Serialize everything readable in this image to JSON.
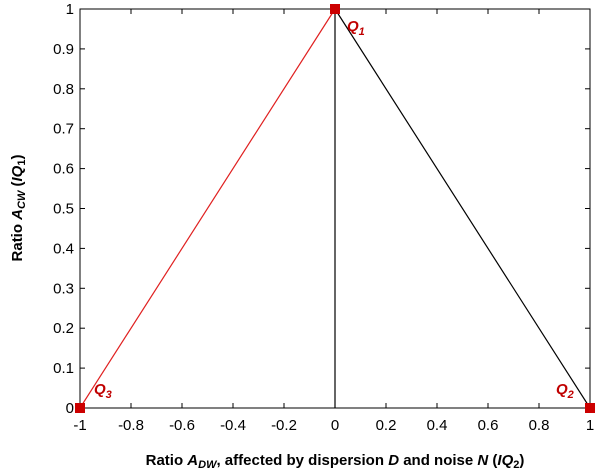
{
  "chart_data": {
    "type": "line",
    "title": "",
    "xlabel": "Ratio ADW, affected by dispersion D and noise N (IQ2)",
    "xlabel_parts": {
      "prefix": "Ratio ",
      "symbol": "A",
      "symbol_sub": "DW",
      "middle1": ", affected by dispersion ",
      "d": "D",
      "middle2": " and noise ",
      "n": "N",
      "open": " (",
      "iq": "IQ",
      "iq_sub": "2",
      "close": ")"
    },
    "ylabel": "Ratio ACW (IQ1)",
    "ylabel_parts": {
      "prefix": "Ratio ",
      "symbol": "A",
      "symbol_sub": "CW",
      "open": " (",
      "iq": "IQ",
      "iq_sub": "1",
      "close": ")"
    },
    "xlim": [
      -1,
      1
    ],
    "ylim": [
      0,
      1
    ],
    "xticks": [
      -1,
      -0.8,
      -0.6,
      -0.4,
      -0.2,
      0,
      0.2,
      0.4,
      0.6,
      0.8,
      1
    ],
    "xtick_labels": [
      "-1",
      "-0.8",
      "-0.6",
      "-0.4",
      "-0.2",
      "0",
      "0.2",
      "0.4",
      "0.6",
      "0.8",
      "1"
    ],
    "yticks": [
      0,
      0.1,
      0.2,
      0.3,
      0.4,
      0.5,
      0.6,
      0.7,
      0.8,
      0.9,
      1
    ],
    "ytick_labels": [
      "0",
      "0.1",
      "0.2",
      "0.3",
      "0.4",
      "0.5",
      "0.6",
      "0.7",
      "0.8",
      "0.9",
      "1"
    ],
    "grid": false,
    "series": [
      {
        "color": "#e02020",
        "x": [
          -1,
          0
        ],
        "y": [
          0,
          1
        ]
      },
      {
        "color": "#000000",
        "x": [
          0,
          1
        ],
        "y": [
          1,
          0
        ]
      },
      {
        "color": "#000000",
        "x": [
          0,
          0
        ],
        "y": [
          0,
          1
        ]
      }
    ],
    "points": [
      {
        "label": "Q",
        "sub": "1",
        "x": 0,
        "y": 1,
        "color": "#cc0000"
      },
      {
        "label": "Q",
        "sub": "2",
        "x": 1,
        "y": 0,
        "color": "#cc0000"
      },
      {
        "label": "Q",
        "sub": "3",
        "x": -1,
        "y": 0,
        "color": "#cc0000"
      }
    ]
  }
}
